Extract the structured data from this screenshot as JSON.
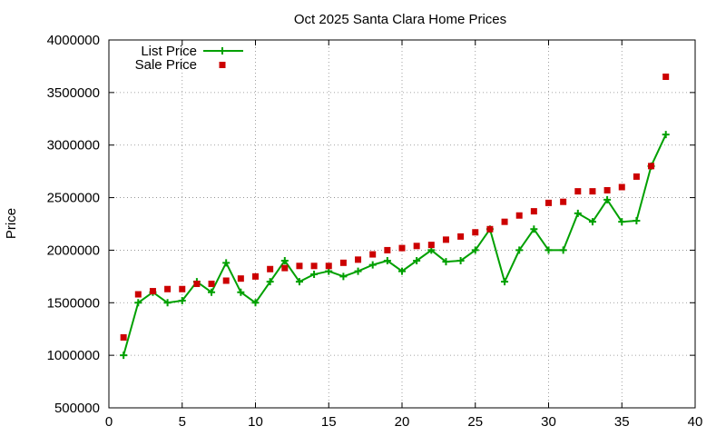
{
  "chart_data": {
    "type": "line",
    "title": "Oct 2025 Santa Clara Home Prices",
    "xlabel": "",
    "ylabel": "Price",
    "xlim": [
      0,
      40
    ],
    "ylim": [
      500000,
      4000000
    ],
    "x_ticks": [
      0,
      5,
      10,
      15,
      20,
      25,
      30,
      35,
      40
    ],
    "y_ticks": [
      500000,
      1000000,
      1500000,
      2000000,
      2500000,
      3000000,
      3500000,
      4000000
    ],
    "grid": true,
    "legend_position": "top-left",
    "x": [
      1,
      2,
      3,
      4,
      5,
      6,
      7,
      8,
      9,
      10,
      11,
      12,
      13,
      14,
      15,
      16,
      17,
      18,
      19,
      20,
      21,
      22,
      23,
      24,
      25,
      26,
      27,
      28,
      29,
      30,
      31,
      32,
      33,
      34,
      35,
      36,
      37,
      38
    ],
    "series": [
      {
        "name": "List Price",
        "style": "linespoints",
        "color": "#00a000",
        "marker": "plus",
        "values": [
          1000000,
          1500000,
          1600000,
          1500000,
          1520000,
          1700000,
          1600000,
          1880000,
          1600000,
          1500000,
          1700000,
          1900000,
          1700000,
          1770000,
          1800000,
          1750000,
          1800000,
          1860000,
          1900000,
          1800000,
          1900000,
          2000000,
          1890000,
          1900000,
          2000000,
          2200000,
          1700000,
          2000000,
          2200000,
          2000000,
          2000000,
          2350000,
          2270000,
          2480000,
          2270000,
          2280000,
          2800000,
          3100000
        ]
      },
      {
        "name": "Sale Price",
        "style": "points",
        "color": "#cc0000",
        "marker": "square",
        "values": [
          1170000,
          1580000,
          1610000,
          1630000,
          1630000,
          1680000,
          1680000,
          1710000,
          1730000,
          1750000,
          1820000,
          1830000,
          1850000,
          1850000,
          1850000,
          1880000,
          1910000,
          1960000,
          2000000,
          2020000,
          2040000,
          2050000,
          2100000,
          2130000,
          2170000,
          2200000,
          2270000,
          2330000,
          2370000,
          2450000,
          2460000,
          2560000,
          2560000,
          2570000,
          2600000,
          2700000,
          2800000,
          3650000
        ]
      }
    ]
  }
}
